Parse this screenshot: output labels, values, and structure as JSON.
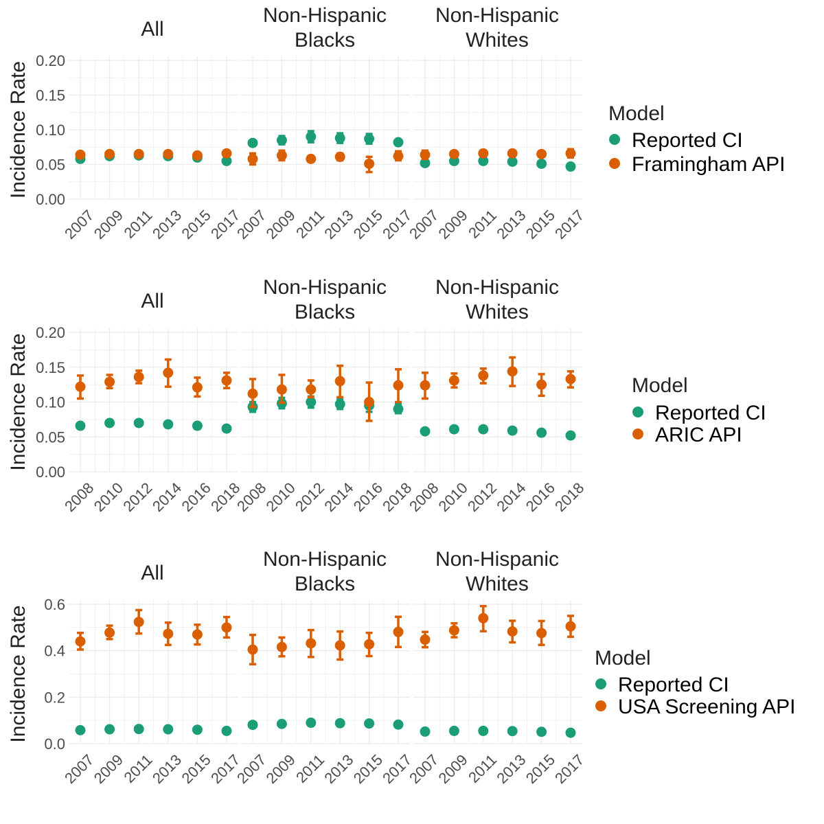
{
  "chart_data": [
    {
      "type": "scatter",
      "ylabel": "Incidence Rate",
      "ylim": [
        0,
        0.2
      ],
      "yticks": [
        0.0,
        0.05,
        0.1,
        0.15,
        0.2
      ],
      "ytick_labels": [
        "0.00",
        "0.05",
        "0.10",
        "0.15",
        "0.20"
      ],
      "x": [
        2007,
        2009,
        2011,
        2013,
        2015,
        2017
      ],
      "xtick_labels": [
        "2007",
        "2009",
        "2011",
        "2013",
        "2015",
        "2017"
      ],
      "legend_title": "Model",
      "legend_position": "right",
      "grid": true,
      "facets": [
        {
          "title": "All",
          "series": [
            {
              "name": "Reported CI",
              "color": "#1b9e77",
              "values": [
                0.058,
                0.062,
                0.063,
                0.062,
                0.06,
                0.055
              ],
              "lower": [
                0.056,
                0.06,
                0.061,
                0.06,
                0.058,
                0.053
              ],
              "upper": [
                0.06,
                0.064,
                0.065,
                0.064,
                0.062,
                0.057
              ]
            },
            {
              "name": "Framingham API",
              "color": "#d95f02",
              "values": [
                0.064,
                0.065,
                0.065,
                0.065,
                0.063,
                0.066
              ],
              "lower": [
                0.062,
                0.063,
                0.063,
                0.063,
                0.061,
                0.062
              ],
              "upper": [
                0.066,
                0.067,
                0.067,
                0.067,
                0.065,
                0.07
              ]
            }
          ]
        },
        {
          "title": "Non-Hispanic\nBlacks",
          "series": [
            {
              "name": "Reported CI",
              "color": "#1b9e77",
              "values": [
                0.081,
                0.085,
                0.09,
                0.088,
                0.087,
                0.082
              ],
              "lower": [
                0.078,
                0.079,
                0.082,
                0.081,
                0.08,
                0.079
              ],
              "upper": [
                0.084,
                0.091,
                0.098,
                0.095,
                0.094,
                0.085
              ]
            },
            {
              "name": "Framingham API",
              "color": "#d95f02",
              "values": [
                0.058,
                0.063,
                0.058,
                0.061,
                0.051,
                0.062
              ],
              "lower": [
                0.05,
                0.056,
                0.055,
                0.056,
                0.039,
                0.056
              ],
              "upper": [
                0.066,
                0.07,
                0.061,
                0.066,
                0.061,
                0.069
              ]
            }
          ]
        },
        {
          "title": "Non-Hispanic\nWhites",
          "series": [
            {
              "name": "Reported CI",
              "color": "#1b9e77",
              "values": [
                0.052,
                0.055,
                0.055,
                0.054,
                0.051,
                0.047
              ],
              "lower": [
                0.05,
                0.053,
                0.053,
                0.052,
                0.049,
                0.045
              ],
              "upper": [
                0.054,
                0.057,
                0.057,
                0.056,
                0.053,
                0.049
              ]
            },
            {
              "name": "Framingham API",
              "color": "#d95f02",
              "values": [
                0.064,
                0.065,
                0.066,
                0.066,
                0.065,
                0.066
              ],
              "lower": [
                0.058,
                0.062,
                0.062,
                0.062,
                0.062,
                0.06
              ],
              "upper": [
                0.07,
                0.068,
                0.07,
                0.07,
                0.068,
                0.072
              ]
            }
          ]
        }
      ]
    },
    {
      "type": "scatter",
      "ylabel": "Incidence Rate",
      "ylim": [
        0,
        0.2
      ],
      "yticks": [
        0.0,
        0.05,
        0.1,
        0.15,
        0.2
      ],
      "ytick_labels": [
        "0.00",
        "0.05",
        "0.10",
        "0.15",
        "0.20"
      ],
      "x": [
        2008,
        2010,
        2012,
        2014,
        2016,
        2018
      ],
      "xtick_labels": [
        "2008",
        "2010",
        "2012",
        "2014",
        "2016",
        "2018"
      ],
      "legend_title": "Model",
      "legend_position": "right",
      "grid": true,
      "facets": [
        {
          "title": "All",
          "series": [
            {
              "name": "Reported CI",
              "color": "#1b9e77",
              "values": [
                0.066,
                0.07,
                0.07,
                0.068,
                0.066,
                0.062
              ],
              "lower": [
                0.064,
                0.068,
                0.068,
                0.066,
                0.064,
                0.06
              ],
              "upper": [
                0.068,
                0.072,
                0.072,
                0.07,
                0.068,
                0.064
              ]
            },
            {
              "name": "ARIC API",
              "color": "#d95f02",
              "values": [
                0.122,
                0.129,
                0.136,
                0.142,
                0.121,
                0.131
              ],
              "lower": [
                0.105,
                0.12,
                0.127,
                0.122,
                0.108,
                0.12
              ],
              "upper": [
                0.138,
                0.139,
                0.145,
                0.161,
                0.135,
                0.142
              ]
            }
          ]
        },
        {
          "title": "Non-Hispanic\nBlacks",
          "series": [
            {
              "name": "Reported CI",
              "color": "#1b9e77",
              "values": [
                0.093,
                0.098,
                0.1,
                0.097,
                0.095,
                0.09
              ],
              "lower": [
                0.086,
                0.091,
                0.092,
                0.09,
                0.086,
                0.084
              ],
              "upper": [
                0.1,
                0.106,
                0.108,
                0.104,
                0.104,
                0.097
              ]
            },
            {
              "name": "ARIC API",
              "color": "#d95f02",
              "values": [
                0.112,
                0.118,
                0.118,
                0.13,
                0.1,
                0.124
              ],
              "lower": [
                0.093,
                0.099,
                0.107,
                0.107,
                0.073,
                0.1
              ],
              "upper": [
                0.133,
                0.139,
                0.131,
                0.152,
                0.128,
                0.147
              ]
            }
          ]
        },
        {
          "title": "Non-Hispanic\nWhites",
          "series": [
            {
              "name": "Reported CI",
              "color": "#1b9e77",
              "values": [
                0.058,
                0.061,
                0.061,
                0.059,
                0.056,
                0.052
              ],
              "lower": [
                0.056,
                0.059,
                0.059,
                0.057,
                0.054,
                0.05
              ],
              "upper": [
                0.06,
                0.063,
                0.063,
                0.061,
                0.058,
                0.054
              ]
            },
            {
              "name": "ARIC API",
              "color": "#d95f02",
              "values": [
                0.124,
                0.131,
                0.138,
                0.144,
                0.125,
                0.133
              ],
              "lower": [
                0.105,
                0.121,
                0.127,
                0.123,
                0.109,
                0.121
              ],
              "upper": [
                0.142,
                0.141,
                0.148,
                0.164,
                0.14,
                0.144
              ]
            }
          ]
        }
      ]
    },
    {
      "type": "scatter",
      "ylabel": "Incidence Rate",
      "ylim": [
        0,
        0.6
      ],
      "yticks": [
        0.0,
        0.2,
        0.4,
        0.6
      ],
      "ytick_labels": [
        "0.0",
        "0.2",
        "0.4",
        "0.6"
      ],
      "x": [
        2007,
        2009,
        2011,
        2013,
        2015,
        2017
      ],
      "xtick_labels": [
        "2007",
        "2009",
        "2011",
        "2013",
        "2015",
        "2017"
      ],
      "legend_title": "Model",
      "legend_position": "right",
      "grid": true,
      "facets": [
        {
          "title": "All",
          "series": [
            {
              "name": "Reported CI",
              "color": "#1b9e77",
              "values": [
                0.058,
                0.062,
                0.063,
                0.062,
                0.06,
                0.055
              ],
              "lower": [
                0.056,
                0.06,
                0.061,
                0.06,
                0.058,
                0.053
              ],
              "upper": [
                0.06,
                0.064,
                0.065,
                0.064,
                0.062,
                0.057
              ]
            },
            {
              "name": "USA Screening API",
              "color": "#d95f02",
              "values": [
                0.44,
                0.478,
                0.524,
                0.473,
                0.47,
                0.5
              ],
              "lower": [
                0.405,
                0.45,
                0.474,
                0.425,
                0.427,
                0.457
              ],
              "upper": [
                0.477,
                0.508,
                0.575,
                0.521,
                0.512,
                0.545
              ]
            }
          ]
        },
        {
          "title": "Non-Hispanic\nBlacks",
          "series": [
            {
              "name": "Reported CI",
              "color": "#1b9e77",
              "values": [
                0.081,
                0.085,
                0.09,
                0.088,
                0.087,
                0.082
              ],
              "lower": [
                0.078,
                0.08,
                0.084,
                0.083,
                0.082,
                0.079
              ],
              "upper": [
                0.084,
                0.09,
                0.096,
                0.093,
                0.092,
                0.085
              ]
            },
            {
              "name": "USA Screening API",
              "color": "#d95f02",
              "values": [
                0.405,
                0.416,
                0.432,
                0.423,
                0.428,
                0.481
              ],
              "lower": [
                0.342,
                0.376,
                0.373,
                0.362,
                0.377,
                0.416
              ],
              "upper": [
                0.468,
                0.457,
                0.489,
                0.483,
                0.477,
                0.546
              ]
            }
          ]
        },
        {
          "title": "Non-Hispanic\nWhites",
          "series": [
            {
              "name": "Reported CI",
              "color": "#1b9e77",
              "values": [
                0.052,
                0.055,
                0.055,
                0.054,
                0.051,
                0.047
              ],
              "lower": [
                0.05,
                0.053,
                0.053,
                0.052,
                0.049,
                0.045
              ],
              "upper": [
                0.054,
                0.057,
                0.057,
                0.056,
                0.053,
                0.049
              ]
            },
            {
              "name": "USA Screening API",
              "color": "#d95f02",
              "values": [
                0.448,
                0.488,
                0.54,
                0.483,
                0.476,
                0.505
              ],
              "lower": [
                0.415,
                0.458,
                0.484,
                0.436,
                0.425,
                0.46
              ],
              "upper": [
                0.481,
                0.518,
                0.592,
                0.529,
                0.528,
                0.55
              ]
            }
          ]
        }
      ]
    }
  ]
}
